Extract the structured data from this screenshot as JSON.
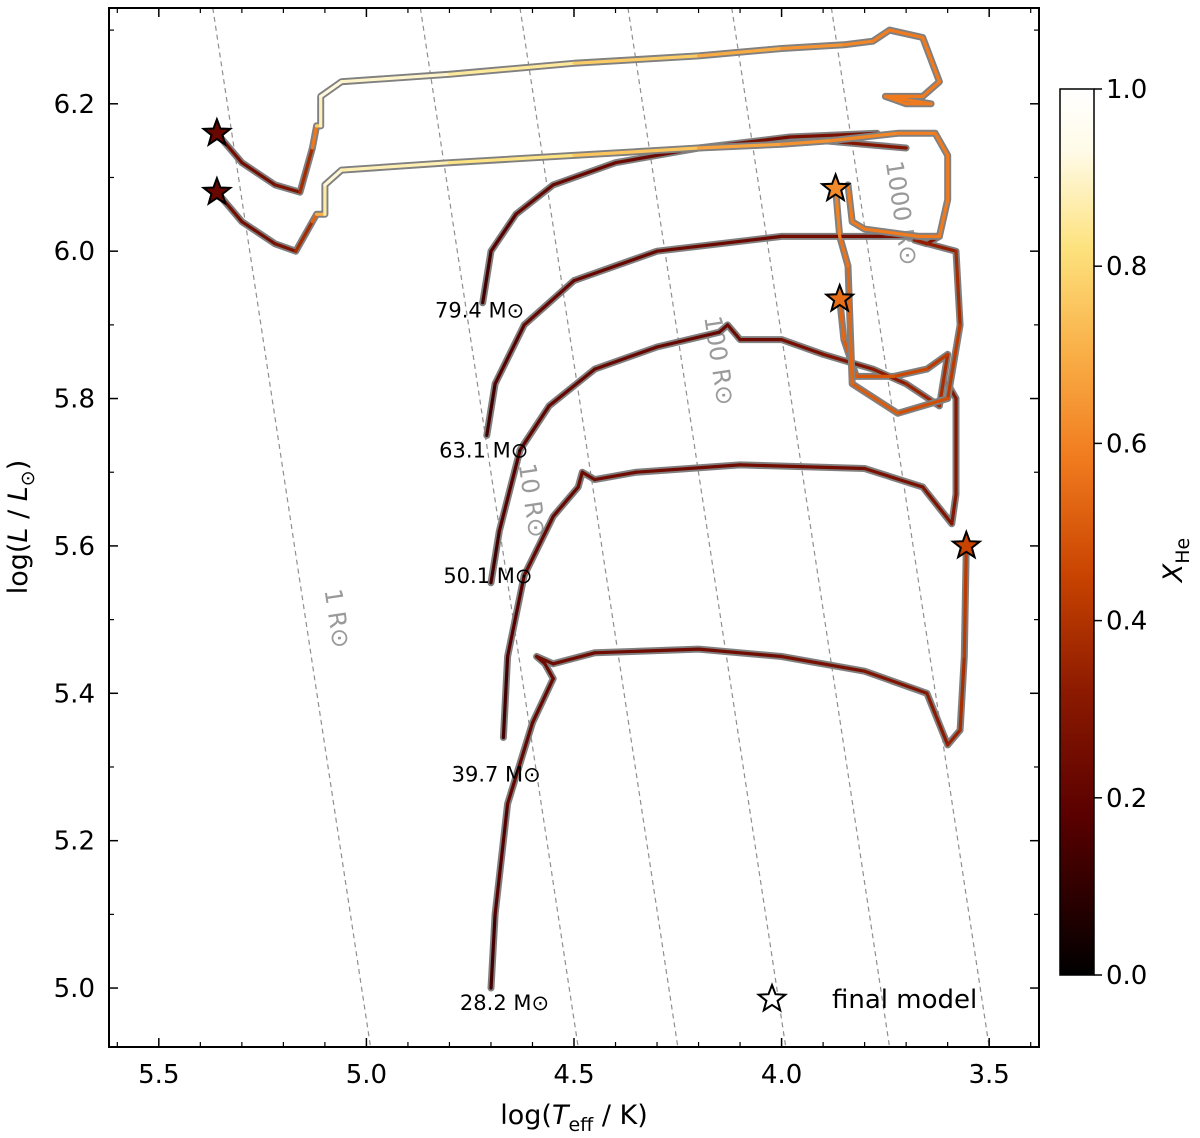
{
  "chart_data": {
    "type": "line",
    "x_axis": {
      "label_prefix": "log(",
      "label_var": "T",
      "label_sub": "eff",
      "label_suffix": " / K)",
      "range": [
        5.62,
        3.38
      ],
      "inverted": true,
      "ticks": [
        5.5,
        5.0,
        4.5,
        4.0,
        3.5
      ],
      "tick_labels": [
        "5.5",
        "5.0",
        "4.5",
        "4.0",
        "3.5"
      ]
    },
    "y_axis": {
      "label_prefix": "log(",
      "label_var": "L",
      "label_mid": " / ",
      "label_var2": "L",
      "label_sun": "⊙",
      "label_suffix": ")",
      "range": [
        4.92,
        6.33
      ],
      "ticks": [
        5.0,
        5.2,
        5.4,
        5.6,
        5.8,
        6.0,
        6.2
      ],
      "tick_labels": [
        "5.0",
        "5.2",
        "5.4",
        "5.6",
        "5.8",
        "6.0",
        "6.2"
      ]
    },
    "colorbar": {
      "label": "X",
      "label_sub": "He",
      "range": [
        0.0,
        1.0
      ],
      "ticks": [
        0.0,
        0.2,
        0.4,
        0.6,
        0.8,
        1.0
      ],
      "tick_labels": [
        "0.0",
        "0.2",
        "0.4",
        "0.6",
        "0.8",
        "1.0"
      ],
      "colormap": [
        "#000000",
        "#5a0000",
        "#8c1a00",
        "#c84300",
        "#f07a1e",
        "#f9ae46",
        "#fde27d",
        "#fffbe8",
        "#ffffff"
      ]
    },
    "legend": {
      "label": "final model",
      "marker": "star-icon",
      "position": "bottom-right"
    },
    "radius_lines": [
      {
        "label": "1 R⊙",
        "label_pos": [
          5.09,
          5.5
        ],
        "points": [
          [
            5.37,
            6.33
          ],
          [
            4.99,
            4.92
          ]
        ]
      },
      {
        "label": "10 R⊙",
        "label_pos": [
          4.62,
          5.66
        ],
        "points": [
          [
            4.87,
            6.33
          ],
          [
            4.49,
            4.92
          ]
        ]
      },
      {
        "label": "100 R⊙",
        "label_pos": [
          4.17,
          5.85
        ],
        "points": [
          [
            4.37,
            6.33
          ],
          [
            3.99,
            4.92
          ]
        ]
      },
      {
        "label": "1000 R⊙",
        "label_pos": [
          3.73,
          6.05
        ],
        "points": [
          [
            3.88,
            6.33
          ],
          [
            3.5,
            4.92
          ]
        ]
      },
      {
        "label": "",
        "points": [
          [
            4.63,
            6.33
          ],
          [
            4.25,
            4.92
          ]
        ]
      },
      {
        "label": "",
        "points": [
          [
            4.12,
            6.33
          ],
          [
            3.74,
            4.92
          ]
        ]
      }
    ],
    "tracks": [
      {
        "mass_label": "28.2 M⊙",
        "label_pos": [
          4.56,
          4.97
        ],
        "points": [
          [
            4.7,
            5.0,
            0.12
          ],
          [
            4.69,
            5.1,
            0.15
          ],
          [
            4.66,
            5.25,
            0.2
          ],
          [
            4.6,
            5.36,
            0.22
          ],
          [
            4.55,
            5.42,
            0.22
          ],
          [
            4.57,
            5.44,
            0.24
          ],
          [
            4.59,
            5.45,
            0.24
          ],
          [
            4.55,
            5.44,
            0.24
          ],
          [
            4.45,
            5.455,
            0.24
          ],
          [
            4.2,
            5.46,
            0.24
          ],
          [
            4.0,
            5.45,
            0.25
          ],
          [
            3.8,
            5.43,
            0.28
          ],
          [
            3.65,
            5.4,
            0.3
          ],
          [
            3.6,
            5.33,
            0.33
          ],
          [
            3.57,
            5.35,
            0.36
          ],
          [
            3.56,
            5.45,
            0.4
          ],
          [
            3.555,
            5.6,
            0.45
          ]
        ],
        "final": [
          3.555,
          5.6,
          0.45
        ]
      },
      {
        "mass_label": "39.7 M⊙",
        "label_pos": [
          4.58,
          5.28
        ],
        "points": [
          [
            4.67,
            5.34,
            0.12
          ],
          [
            4.66,
            5.45,
            0.15
          ],
          [
            4.62,
            5.56,
            0.2
          ],
          [
            4.55,
            5.64,
            0.22
          ],
          [
            4.49,
            5.68,
            0.22
          ],
          [
            4.48,
            5.7,
            0.24
          ],
          [
            4.45,
            5.69,
            0.24
          ],
          [
            4.35,
            5.7,
            0.24
          ],
          [
            4.1,
            5.71,
            0.24
          ],
          [
            3.8,
            5.705,
            0.26
          ],
          [
            3.66,
            5.68,
            0.28
          ],
          [
            3.59,
            5.63,
            0.3
          ],
          [
            3.58,
            5.67,
            0.3
          ],
          [
            3.58,
            5.8,
            0.3
          ],
          [
            3.6,
            5.82,
            0.3
          ]
        ]
      },
      {
        "mass_label": "50.1 M⊙",
        "label_pos": [
          4.6,
          5.55
        ],
        "points": [
          [
            4.7,
            5.55,
            0.12
          ],
          [
            4.68,
            5.62,
            0.15
          ],
          [
            4.63,
            5.73,
            0.2
          ],
          [
            4.56,
            5.79,
            0.2
          ],
          [
            4.45,
            5.84,
            0.22
          ],
          [
            4.3,
            5.87,
            0.22
          ],
          [
            4.15,
            5.89,
            0.22
          ],
          [
            4.13,
            5.9,
            0.22
          ],
          [
            4.1,
            5.88,
            0.24
          ],
          [
            4.0,
            5.88,
            0.24
          ],
          [
            3.9,
            5.86,
            0.28
          ],
          [
            3.78,
            5.84,
            0.3
          ],
          [
            3.7,
            5.82,
            0.34
          ],
          [
            3.62,
            5.79,
            0.36
          ],
          [
            3.6,
            5.86,
            0.4
          ],
          [
            3.65,
            5.84,
            0.44
          ],
          [
            3.73,
            5.83,
            0.48
          ],
          [
            3.82,
            5.83,
            0.5
          ],
          [
            3.85,
            5.88,
            0.52
          ],
          [
            3.86,
            5.935,
            0.55
          ]
        ],
        "final": [
          3.86,
          5.935,
          0.55
        ]
      },
      {
        "mass_label": "63.1 M⊙",
        "label_pos": [
          4.61,
          5.72
        ],
        "points": [
          [
            4.71,
            5.75,
            0.12
          ],
          [
            4.69,
            5.82,
            0.15
          ],
          [
            4.62,
            5.9,
            0.2
          ],
          [
            4.5,
            5.96,
            0.22
          ],
          [
            4.3,
            6.0,
            0.22
          ],
          [
            4.0,
            6.02,
            0.24
          ],
          [
            3.75,
            6.02,
            0.26
          ],
          [
            3.62,
            6.02,
            0.28
          ],
          [
            3.65,
            6.01,
            0.3
          ],
          [
            3.68,
            6.015,
            0.32
          ],
          [
            3.58,
            6.0,
            0.35
          ],
          [
            3.57,
            5.9,
            0.4
          ],
          [
            3.6,
            5.8,
            0.45
          ],
          [
            3.72,
            5.78,
            0.5
          ],
          [
            3.83,
            5.82,
            0.52
          ],
          [
            3.84,
            5.98,
            0.55
          ],
          [
            3.86,
            6.02,
            0.58
          ],
          [
            3.87,
            6.085,
            0.62
          ]
        ],
        "final": [
          3.87,
          6.085,
          0.62
        ]
      },
      {
        "mass_label": "79.4 M⊙",
        "label_pos": [
          4.62,
          5.91
        ],
        "points": [
          [
            4.72,
            5.93,
            0.12
          ],
          [
            4.7,
            6.0,
            0.15
          ],
          [
            4.64,
            6.05,
            0.2
          ],
          [
            4.55,
            6.09,
            0.22
          ],
          [
            4.4,
            6.12,
            0.22
          ],
          [
            4.2,
            6.14,
            0.24
          ],
          [
            3.98,
            6.155,
            0.26
          ],
          [
            3.77,
            6.16,
            0.28
          ],
          [
            3.9,
            6.15,
            0.3
          ],
          [
            3.7,
            6.14,
            0.3
          ]
        ]
      },
      {
        "mass_label": "",
        "label_pos": null,
        "points": [
          [
            5.36,
            6.08,
            0.25
          ],
          [
            5.3,
            6.04,
            0.25
          ],
          [
            5.22,
            6.01,
            0.25
          ],
          [
            5.17,
            6.0,
            0.3
          ],
          [
            5.13,
            6.04,
            0.45
          ],
          [
            5.12,
            6.05,
            0.6
          ],
          [
            5.1,
            6.05,
            0.8
          ],
          [
            5.1,
            6.09,
            0.92
          ],
          [
            5.06,
            6.11,
            0.9
          ],
          [
            4.8,
            6.12,
            0.85
          ],
          [
            4.5,
            6.13,
            0.8
          ],
          [
            4.2,
            6.14,
            0.7
          ],
          [
            4.0,
            6.145,
            0.65
          ],
          [
            3.88,
            6.15,
            0.62
          ],
          [
            3.72,
            6.16,
            0.6
          ],
          [
            3.63,
            6.16,
            0.58
          ],
          [
            3.6,
            6.13,
            0.58
          ],
          [
            3.6,
            6.07,
            0.58
          ],
          [
            3.62,
            6.02,
            0.58
          ],
          [
            3.67,
            6.02,
            0.58
          ],
          [
            3.8,
            6.03,
            0.58
          ],
          [
            3.83,
            6.04,
            0.58
          ],
          [
            3.84,
            6.09,
            0.58
          ]
        ]
      },
      {
        "mass_label": "",
        "label_pos": null,
        "points": [
          [
            5.36,
            6.16,
            0.25
          ],
          [
            5.3,
            6.12,
            0.25
          ],
          [
            5.22,
            6.09,
            0.25
          ],
          [
            5.16,
            6.08,
            0.3
          ],
          [
            5.13,
            6.14,
            0.45
          ],
          [
            5.12,
            6.17,
            0.7
          ],
          [
            5.11,
            6.17,
            0.85
          ],
          [
            5.11,
            6.21,
            0.92
          ],
          [
            5.06,
            6.23,
            0.92
          ],
          [
            4.8,
            6.24,
            0.88
          ],
          [
            4.5,
            6.255,
            0.82
          ],
          [
            4.2,
            6.265,
            0.72
          ],
          [
            4.0,
            6.275,
            0.66
          ],
          [
            3.85,
            6.28,
            0.62
          ],
          [
            3.78,
            6.285,
            0.6
          ],
          [
            3.74,
            6.3,
            0.58
          ],
          [
            3.66,
            6.29,
            0.58
          ],
          [
            3.62,
            6.23,
            0.58
          ],
          [
            3.66,
            6.21,
            0.58
          ],
          [
            3.75,
            6.21,
            0.58
          ],
          [
            3.7,
            6.2,
            0.58
          ],
          [
            3.64,
            6.2,
            0.58
          ],
          [
            3.75,
            6.21,
            0.58
          ]
        ]
      }
    ],
    "extra_stars": [
      [
        5.36,
        6.16,
        0.22
      ],
      [
        5.36,
        6.08,
        0.22
      ]
    ]
  }
}
